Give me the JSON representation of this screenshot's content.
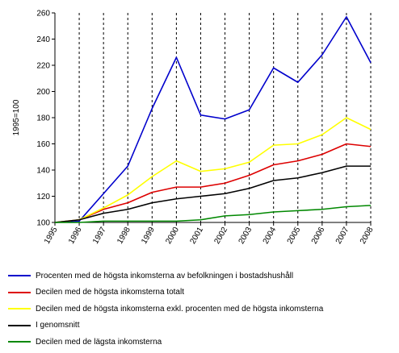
{
  "chart_data": {
    "type": "line",
    "ylabel": "1995=100",
    "xlabel": "",
    "x": [
      "1995",
      "1996",
      "1997",
      "1998",
      "1999",
      "2000",
      "2001",
      "2002",
      "2003",
      "2004",
      "2005",
      "2006",
      "2007",
      "2008"
    ],
    "ylim": [
      100,
      260
    ],
    "yticks": [
      100,
      120,
      140,
      160,
      180,
      200,
      220,
      240,
      260
    ],
    "grid": "vertical-dashed",
    "legend_position": "bottom",
    "series": [
      {
        "name": "Procenten med de högsta inkomsterna av befolkningen i bostadshushåll",
        "color": "#0000cc",
        "values": [
          100,
          101,
          122,
          143,
          187,
          226,
          182,
          179,
          186,
          218,
          207,
          228,
          257,
          222
        ]
      },
      {
        "name": "Decilen med de högsta inkomsterna totalt",
        "color": "#dd0000",
        "values": [
          100,
          102,
          110,
          115,
          123,
          127,
          127,
          130,
          136,
          144,
          147,
          152,
          160,
          158
        ]
      },
      {
        "name": "Decilen med de högsta inkomsterna exkl. procenten med de högsta inkomsterna",
        "color": "#ffff00",
        "values": [
          100,
          102,
          111,
          121,
          135,
          147,
          139,
          141,
          146,
          159,
          160,
          167,
          180,
          171
        ]
      },
      {
        "name": "I genomsnitt",
        "color": "#000000",
        "values": [
          100,
          102,
          107,
          110,
          115,
          118,
          120,
          122,
          126,
          132,
          134,
          138,
          143,
          143
        ]
      },
      {
        "name": "Decilen med de lägsta inkomsterna",
        "color": "#008800",
        "values": [
          100,
          100,
          101,
          101,
          101,
          101,
          102,
          105,
          106,
          108,
          109,
          110,
          112,
          113
        ]
      }
    ]
  }
}
